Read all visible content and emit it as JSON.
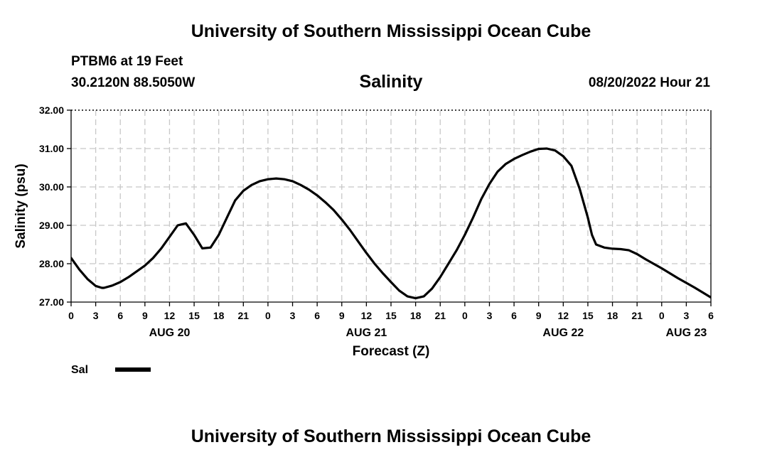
{
  "header": {
    "title_top": "University of Southern Mississippi Ocean Cube",
    "station": "PTBM6 at 19 Feet",
    "coords": "30.2120N  88.5050W",
    "chart_title": "Salinity",
    "datetime": "08/20/2022 Hour 21",
    "title_bottom": "University of Southern Mississippi Ocean Cube"
  },
  "colors": {
    "line": "#000000",
    "grid": "#c8c8c8",
    "axis": "#000000"
  },
  "chart_data": {
    "type": "line",
    "title": "Salinity",
    "xlabel": "Forecast (Z)",
    "ylabel": "Salinity (psu)",
    "ylim": [
      27.0,
      32.0
    ],
    "xlim": [
      0,
      78
    ],
    "grid": true,
    "yticks": [
      "27.00",
      "28.00",
      "29.00",
      "30.00",
      "31.00",
      "32.00"
    ],
    "xtick_labels": [
      "0",
      "3",
      "6",
      "9",
      "12",
      "15",
      "18",
      "21",
      "0",
      "3",
      "6",
      "9",
      "12",
      "15",
      "18",
      "21",
      "0",
      "3",
      "6",
      "9",
      "12",
      "15",
      "18",
      "21",
      "0",
      "3",
      "6"
    ],
    "day_labels": [
      {
        "text": "AUG 20",
        "hour": 12
      },
      {
        "text": "AUG 21",
        "hour": 36
      },
      {
        "text": "AUG 22",
        "hour": 60
      },
      {
        "text": "AUG 23",
        "hour": 75
      }
    ],
    "legend": {
      "label": "Sal",
      "placement": "bottom-left"
    },
    "series": [
      {
        "name": "Sal",
        "x": [
          0,
          1,
          2,
          3,
          3.75,
          4,
          5,
          6,
          7,
          8,
          9,
          10,
          11,
          12,
          13,
          14,
          15,
          16,
          17,
          18,
          19,
          20,
          21,
          22,
          23,
          24,
          25,
          26,
          27,
          28,
          29,
          30,
          31,
          32,
          33,
          34,
          35,
          36,
          37,
          38,
          39,
          40,
          41,
          42,
          43,
          44,
          45,
          46,
          47,
          48,
          49,
          50,
          51,
          52,
          53,
          54,
          55,
          56,
          57,
          58,
          59,
          60,
          61,
          62,
          63,
          63.5,
          64,
          65,
          66,
          67,
          68,
          69,
          70,
          71,
          72,
          73,
          74,
          75,
          76,
          77,
          78
        ],
        "values": [
          28.15,
          27.85,
          27.6,
          27.42,
          27.37,
          27.37,
          27.43,
          27.52,
          27.65,
          27.8,
          27.95,
          28.15,
          28.4,
          28.7,
          29.0,
          29.05,
          28.75,
          28.4,
          28.42,
          28.75,
          29.2,
          29.65,
          29.9,
          30.05,
          30.15,
          30.2,
          30.22,
          30.2,
          30.15,
          30.05,
          29.93,
          29.78,
          29.6,
          29.4,
          29.15,
          28.88,
          28.58,
          28.28,
          28.0,
          27.75,
          27.52,
          27.3,
          27.15,
          27.1,
          27.15,
          27.35,
          27.65,
          28.0,
          28.35,
          28.75,
          29.2,
          29.68,
          30.08,
          30.4,
          30.6,
          30.73,
          30.83,
          30.92,
          30.99,
          31.0,
          30.95,
          30.8,
          30.55,
          29.95,
          29.2,
          28.75,
          28.5,
          28.42,
          28.39,
          28.38,
          28.35,
          28.25,
          28.12,
          28.0,
          27.88,
          27.75,
          27.62,
          27.5,
          27.38,
          27.25,
          27.12
        ],
        "x_visible_max": 78
      }
    ]
  }
}
